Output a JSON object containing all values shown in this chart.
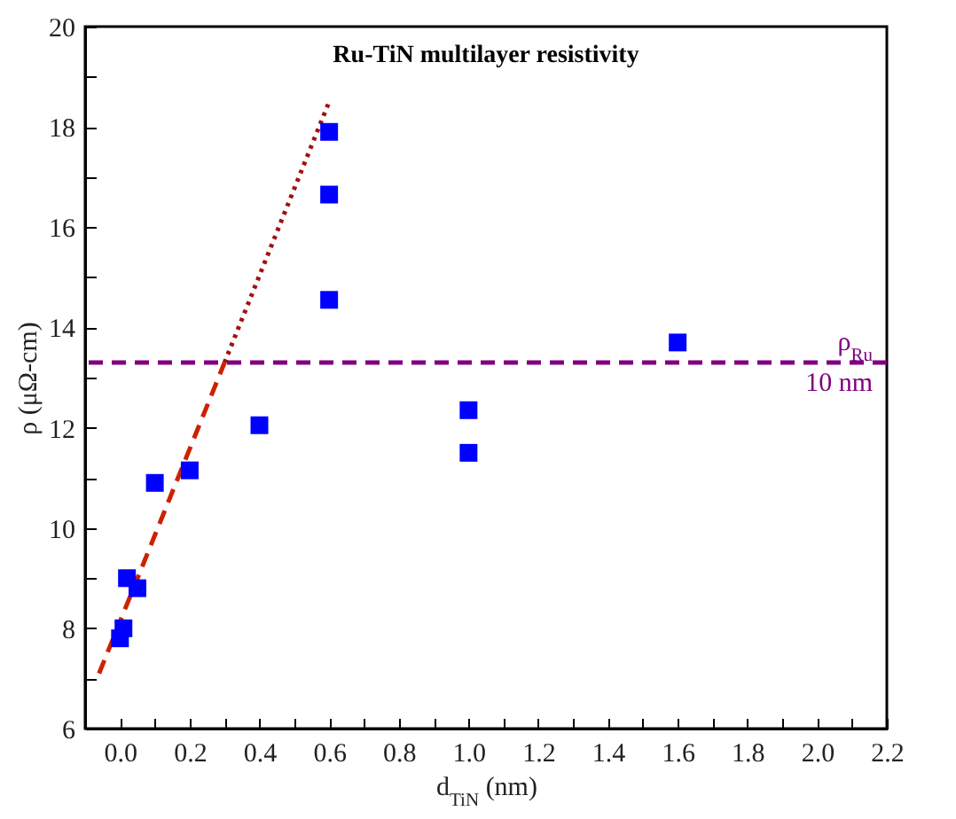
{
  "chart_data": {
    "type": "scatter",
    "title": "Ru-TiN multilayer resistivity",
    "xlabel": "d$_{TiN}$ (nm)",
    "ylabel": "ρ (μΩ-cm)",
    "xlim": [
      -0.1,
      2.2
    ],
    "ylim": [
      6,
      20
    ],
    "xticks": [
      {
        "value": 0,
        "label": "0.0"
      },
      {
        "value": 0.1,
        "label": null
      },
      0.2,
      {
        "value": 0.3,
        "label": null
      },
      0.4,
      {
        "value": 0.5,
        "label": null
      },
      0.6,
      {
        "value": 0.7,
        "label": null
      },
      0.8,
      {
        "value": 0.9,
        "label": null
      },
      {
        "value": 1,
        "label": "1.0"
      },
      {
        "value": 1.1,
        "label": null
      },
      1.2,
      {
        "value": 1.3,
        "label": null
      },
      1.4,
      {
        "value": 1.5,
        "label": null
      },
      1.6,
      {
        "value": 1.7,
        "label": null
      },
      1.8,
      {
        "value": 1.9,
        "label": null
      },
      {
        "value": 2,
        "label": "2.0"
      },
      {
        "value": 2.1,
        "label": null
      },
      2.2
    ],
    "yticks": [
      6,
      {
        "value": 7,
        "label": null
      },
      8,
      {
        "value": 9,
        "label": null
      },
      10,
      {
        "value": 11,
        "label": null
      },
      12,
      {
        "value": 13,
        "label": null
      },
      14,
      {
        "value": 15,
        "label": null
      },
      16,
      {
        "value": 17,
        "label": null
      },
      18,
      {
        "value": 19,
        "label": null
      },
      20
    ],
    "grid": false,
    "series": [
      {
        "type": "scatter",
        "color": "#0000ff",
        "marker": "square",
        "x": [
          0,
          0.01,
          0.02,
          0.05,
          0.1,
          0.2,
          0.4,
          0.6,
          0.6,
          0.6,
          1.0,
          1.0,
          1.6
        ],
        "values": [
          7.8,
          8.0,
          9.0,
          8.8,
          10.9,
          11.15,
          12.05,
          14.55,
          16.65,
          17.9,
          12.35,
          11.5,
          13.7
        ]
      },
      {
        "type": "line",
        "color": "#cc2200",
        "line_style": "dashed",
        "x": [
          -0.06,
          0.3
        ],
        "values": [
          7.1,
          13.3
        ]
      },
      {
        "type": "line",
        "color": "#a01010",
        "line_style": "dotted",
        "x": [
          0.3,
          0.6
        ],
        "values": [
          13.3,
          18.5
        ]
      }
    ],
    "ref_lines": [
      {
        "axis": "y",
        "value": 13.3,
        "label": "ρ$_{Ru}$ 10 nm",
        "color": "#800080",
        "line_style": "dashed"
      }
    ]
  }
}
